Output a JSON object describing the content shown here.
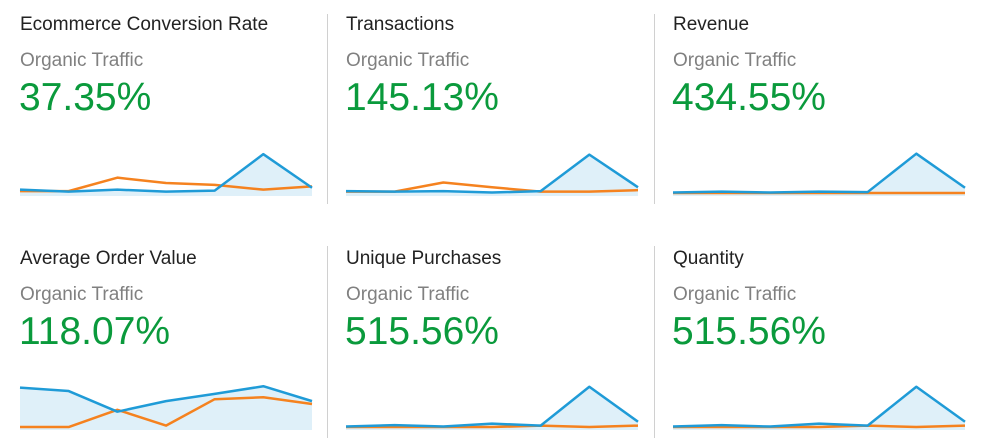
{
  "colors": {
    "value_green": "#0a9a3c",
    "series_blue": "#1f9bd7",
    "series_blue_fill": "#dff0f9",
    "series_orange": "#f5821f"
  },
  "cards": [
    {
      "title": "Ecommerce Conversion Rate",
      "subtitle": "Organic Traffic",
      "value": "37.35%",
      "sparkline": {
        "blue": [
          0.09,
          0.05,
          0.09,
          0.05,
          0.07,
          0.83,
          0.13
        ],
        "orange": [
          0.06,
          0.06,
          0.34,
          0.23,
          0.19,
          0.09,
          0.16
        ]
      }
    },
    {
      "title": "Transactions",
      "subtitle": "Organic Traffic",
      "value": "145.13%",
      "sparkline": {
        "blue": [
          0.06,
          0.05,
          0.06,
          0.03,
          0.06,
          0.82,
          0.14
        ],
        "orange": [
          0.05,
          0.05,
          0.24,
          0.14,
          0.05,
          0.05,
          0.08
        ]
      }
    },
    {
      "title": "Revenue",
      "subtitle": "Organic Traffic",
      "value": "434.55%",
      "sparkline": {
        "blue": [
          0.03,
          0.05,
          0.03,
          0.05,
          0.04,
          0.84,
          0.13
        ],
        "orange": [
          0.02,
          0.02,
          0.02,
          0.02,
          0.02,
          0.02,
          0.02
        ]
      }
    },
    {
      "title": "Average Order Value",
      "subtitle": "Organic Traffic",
      "value": "118.07%",
      "sparkline": {
        "blue": [
          0.84,
          0.77,
          0.34,
          0.56,
          0.71,
          0.87,
          0.56
        ],
        "orange": [
          0.02,
          0.02,
          0.38,
          0.05,
          0.6,
          0.64,
          0.5
        ]
      }
    },
    {
      "title": "Unique Purchases",
      "subtitle": "Organic Traffic",
      "value": "515.56%",
      "sparkline": {
        "blue": [
          0.03,
          0.06,
          0.03,
          0.09,
          0.05,
          0.86,
          0.13
        ],
        "orange": [
          0.02,
          0.02,
          0.02,
          0.02,
          0.05,
          0.02,
          0.05
        ]
      }
    },
    {
      "title": "Quantity",
      "subtitle": "Organic Traffic",
      "value": "515.56%",
      "sparkline": {
        "blue": [
          0.03,
          0.06,
          0.03,
          0.09,
          0.05,
          0.86,
          0.13
        ],
        "orange": [
          0.02,
          0.02,
          0.02,
          0.02,
          0.05,
          0.02,
          0.05
        ]
      }
    }
  ]
}
